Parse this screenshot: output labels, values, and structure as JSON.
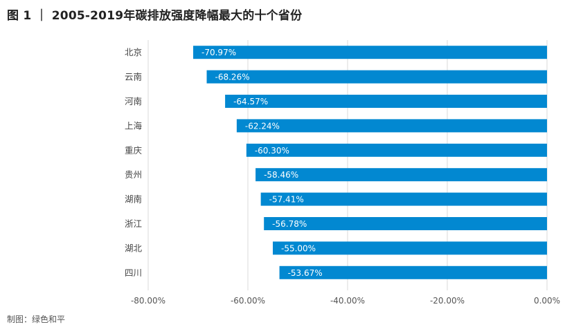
{
  "title": "图 1 ｜ 2005-2019年碳排放强度降幅最大的十个省份",
  "source": "制图：绿色和平",
  "chart_data": {
    "type": "bar",
    "orientation": "horizontal",
    "categories": [
      "北京",
      "云南",
      "河南",
      "上海",
      "重庆",
      "贵州",
      "湖南",
      "浙江",
      "湖北",
      "四川"
    ],
    "values": [
      -70.97,
      -68.26,
      -64.57,
      -62.24,
      -60.3,
      -58.46,
      -57.41,
      -56.78,
      -55.0,
      -53.67
    ],
    "data_labels": [
      "-70.97%",
      "-68.26%",
      "-64.57%",
      "-62.24%",
      "-60.30%",
      "-58.46%",
      "-57.41%",
      "-56.78%",
      "-55.00%",
      "-53.67%"
    ],
    "x_ticks": [
      -80,
      -60,
      -40,
      -20,
      0
    ],
    "x_tick_labels": [
      "-80.00%",
      "-60.00%",
      "-40.00%",
      "-20.00%",
      "0.00%"
    ],
    "xlim": [
      -80,
      0
    ],
    "grid": "vertical",
    "bar_color": "#0288D1",
    "grid_color": "#D9D9D9",
    "label_color": "#FFFFFF"
  }
}
